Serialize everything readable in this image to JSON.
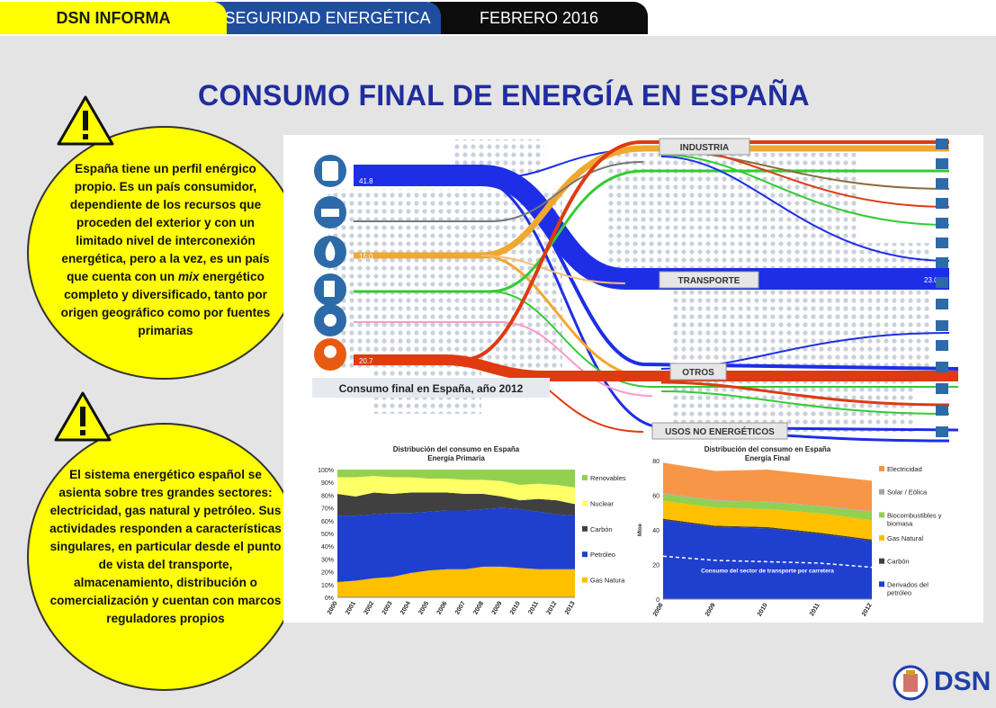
{
  "header": {
    "tab1": "DSN INFORMA",
    "tab2": "SEGURIDAD ENERGÉTICA",
    "tab3": "FEBRERO 2016"
  },
  "title": "CONSUMO FINAL DE ENERGÍA EN ESPAÑA",
  "note1": {
    "pre": "España tiene un perfil enérgico propio. Es un país consumidor, dependiente de los recursos que proceden del exterior y con un limitado nivel de interconexión energética, pero a la vez, es un país que cuenta con un ",
    "em": "mix",
    "post": " energético completo y diversificado, tanto por origen geográfico como por fuentes primarias"
  },
  "note2": "El sistema energético español se asienta sobre tres grandes sectores: electricidad, gas natural y petróleo. Sus actividades responden a características singulares, en particular desde el punto de vista del transporte, almacenamiento, distribución o comercialización y cuentan con marcos reguladores propios",
  "sankey": {
    "caption": "Consumo final en España, año 2012",
    "sectors": [
      "INDUSTRIA",
      "TRANSPORTE",
      "OTROS",
      "USOS NO ENERGÉTICOS"
    ],
    "values": {
      "petroleo": "41.8",
      "gas": "15.0",
      "electricidad": "20.7",
      "transporte": "23.0"
    },
    "colors": {
      "petroleo": "#1e2ee6",
      "gas": "#f0a830",
      "electricidad": "#e03a10",
      "renovables": "#33cc33"
    }
  },
  "chart_data": [
    {
      "type": "area",
      "title": "Distribución del consumo en España",
      "subtitle": "Energía Primaria",
      "x": [
        "2000",
        "2001",
        "2002",
        "2003",
        "2004",
        "2005",
        "2006",
        "2007",
        "2008",
        "2009",
        "2010",
        "2011",
        "2012",
        "2013"
      ],
      "yticks": [
        "0%",
        "10%",
        "20%",
        "30%",
        "40%",
        "50%",
        "60%",
        "70%",
        "80%",
        "90%",
        "100%"
      ],
      "ylim": [
        0,
        100
      ],
      "stacked": true,
      "series": [
        {
          "name": "Gas Natura",
          "color": "#ffc000",
          "values": [
            12,
            13,
            15,
            16,
            19,
            21,
            22,
            22,
            24,
            24,
            23,
            22,
            22,
            22
          ]
        },
        {
          "name": "Petróleo",
          "color": "#1f3fcf",
          "values": [
            52,
            51,
            50,
            50,
            47,
            46,
            46,
            46,
            45,
            46,
            46,
            45,
            43,
            42
          ]
        },
        {
          "name": "Carbón",
          "color": "#404040",
          "values": [
            17,
            15,
            17,
            15,
            16,
            15,
            14,
            13,
            12,
            9,
            7,
            10,
            11,
            9
          ]
        },
        {
          "name": "Nuclear",
          "color": "#ffff66",
          "values": [
            13,
            15,
            13,
            13,
            12,
            11,
            11,
            11,
            11,
            12,
            12,
            12,
            12,
            13
          ]
        },
        {
          "name": "Renovables",
          "color": "#92d050",
          "values": [
            6,
            6,
            5,
            6,
            6,
            7,
            7,
            8,
            8,
            9,
            12,
            11,
            12,
            14
          ]
        }
      ],
      "legend": [
        "Renovables",
        "Nuclear",
        "Carbón",
        "Petróleo",
        "Gas Natura"
      ]
    },
    {
      "type": "area",
      "title": "Distribución del consumo en España",
      "subtitle": "Energía Final",
      "ylabel": "Mtoe",
      "x": [
        "2008",
        "2009",
        "2010",
        "2011",
        "2012"
      ],
      "yticks": [
        "0",
        "20",
        "40",
        "60",
        "80"
      ],
      "ylim": [
        0,
        100
      ],
      "stacked": true,
      "series": [
        {
          "name": "Derivados del petróleo",
          "color": "#1f3fcf",
          "values": [
            57,
            52,
            51,
            47,
            42
          ]
        },
        {
          "name": "Carbón",
          "color": "#404040",
          "values": [
            1,
            1,
            1,
            1,
            1
          ]
        },
        {
          "name": "Gas Natural",
          "color": "#ffc000",
          "values": [
            13,
            13,
            13,
            14,
            14
          ]
        },
        {
          "name": "Biocombustibles y biomasa",
          "color": "#92d050",
          "values": [
            5,
            5,
            5,
            5,
            6
          ]
        },
        {
          "name": "Solar / Eólica",
          "color": "#a5a5a5",
          "values": [
            0.5,
            0.5,
            0.5,
            0.5,
            0.5
          ]
        },
        {
          "name": "Electricidad",
          "color": "#f79646",
          "values": [
            22,
            21,
            23,
            22,
            22
          ]
        }
      ],
      "line": {
        "name": "Consumo del sector de transporte por carretera",
        "values": [
          31,
          28,
          27,
          26,
          23
        ]
      },
      "legend": [
        "Electricidad",
        "Solar / Eólica",
        "Biocombustibles y biomasa",
        "Gas Natural",
        "Carbón",
        "Derivados del petróleo"
      ]
    }
  ],
  "logo": {
    "text": "DSN",
    "color": "#1f3fa8"
  }
}
